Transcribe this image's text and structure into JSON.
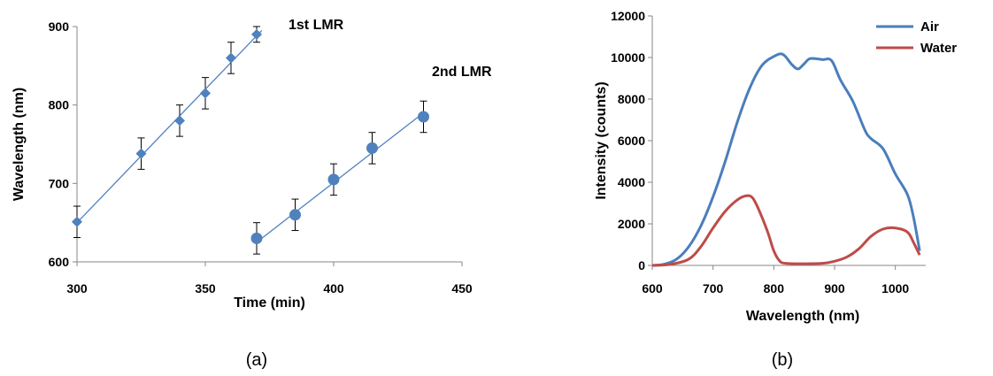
{
  "chart_data": [
    {
      "type": "scatter",
      "panel_label": "(a)",
      "xlabel": "Time (min)",
      "ylabel": "Wavelength  (nm)",
      "xlim": [
        300,
        450
      ],
      "ylim": [
        600,
        900
      ],
      "xticks": [
        300,
        350,
        400,
        450
      ],
      "yticks": [
        600,
        700,
        800,
        900
      ],
      "series": [
        {
          "annotation": "1st LMR",
          "marker": "diamond",
          "color": "#4f81bd",
          "x": [
            300,
            325,
            340,
            350,
            360,
            370
          ],
          "y": [
            651,
            738,
            780,
            815,
            860,
            890
          ],
          "error": [
            20,
            20,
            20,
            20,
            20,
            10
          ],
          "fit": [
            [
              300,
              650
            ],
            [
              372,
              895
            ]
          ]
        },
        {
          "annotation": "2nd LMR",
          "marker": "circle",
          "color": "#4f81bd",
          "x": [
            370,
            385,
            400,
            415,
            435
          ],
          "y": [
            630,
            660,
            705,
            745,
            785
          ],
          "error": [
            20,
            20,
            20,
            20,
            20
          ],
          "fit": [
            [
              370,
              625
            ],
            [
              435,
              790
            ]
          ]
        }
      ]
    },
    {
      "type": "line",
      "panel_label": "(b)",
      "xlabel": "Wavelength (nm)",
      "ylabel": "Intensity (counts)",
      "xlim": [
        600,
        1050
      ],
      "ylim": [
        0,
        12000
      ],
      "xticks": [
        600,
        700,
        800,
        900,
        1000
      ],
      "yticks": [
        0,
        2000,
        4000,
        6000,
        8000,
        10000,
        12000
      ],
      "legend_position": "top-right",
      "series": [
        {
          "name": "Air",
          "color": "#4a7ebb",
          "x": [
            600,
            620,
            640,
            660,
            680,
            700,
            720,
            740,
            760,
            780,
            800,
            815,
            830,
            840,
            850,
            860,
            880,
            895,
            910,
            930,
            950,
            960,
            980,
            1000,
            1020,
            1030,
            1040
          ],
          "y": [
            0,
            60,
            300,
            900,
            1900,
            3300,
            5000,
            6900,
            8500,
            9600,
            10050,
            10150,
            9650,
            9450,
            9700,
            9950,
            9900,
            9850,
            8900,
            7900,
            6500,
            6100,
            5600,
            4400,
            3400,
            2300,
            700
          ]
        },
        {
          "name": "Water",
          "color": "#be4b48",
          "x": [
            600,
            630,
            660,
            680,
            700,
            720,
            740,
            755,
            765,
            775,
            790,
            800,
            810,
            820,
            840,
            880,
            900,
            920,
            940,
            960,
            980,
            1000,
            1020,
            1030,
            1040
          ],
          "y": [
            0,
            50,
            300,
            900,
            1800,
            2600,
            3150,
            3350,
            3250,
            2700,
            1600,
            700,
            200,
            100,
            80,
            100,
            200,
            400,
            800,
            1400,
            1750,
            1800,
            1600,
            1100,
            500
          ]
        }
      ]
    }
  ]
}
